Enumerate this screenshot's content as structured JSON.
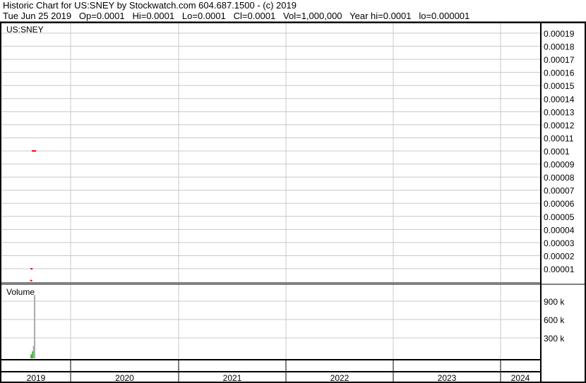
{
  "header": {
    "title": "Historic Chart for US:SNEY by Stockwatch.com 604.687.1500 - (c) 2019",
    "quote": "Tue Jun 25 2019   Op=0.0001   Hi=0.0001   Lo=0.0001   Cl=0.0001   Vol=1,000,000   Year hi=0.0001   lo=0.000001"
  },
  "chart_data": [
    {
      "type": "scatter",
      "title": "US:SNEY",
      "y_ticks": [
        "0.00019",
        "0.00018",
        "0.00017",
        "0.00016",
        "0.00015",
        "0.00014",
        "0.00013",
        "0.00012",
        "0.00011",
        "0.0001",
        "0.00009",
        "0.00008",
        "0.00007",
        "0.00006",
        "0.00005",
        "0.00004",
        "0.00003",
        "0.00002",
        "0.00001"
      ],
      "ylim": [
        0,
        0.0002
      ],
      "x_ticks": [
        "2019",
        "2020",
        "2021",
        "2022",
        "2023",
        "2024"
      ],
      "grid": true,
      "points": [
        {
          "x": "2019-06-05",
          "y": 1e-06
        },
        {
          "x": "2019-06-07",
          "y": 1e-05
        },
        {
          "x": "2019-06-14",
          "y": 0.0001
        },
        {
          "x": "2019-06-20",
          "y": 0.0001
        },
        {
          "x": "2019-06-25",
          "y": 0.0001
        }
      ],
      "color": "#ff0000"
    },
    {
      "type": "bar",
      "title": "Volume",
      "y_ticks": [
        "900 k",
        "600 k",
        "300 k"
      ],
      "ylim": [
        0,
        1100000
      ],
      "bars": [
        {
          "x": "2019-06-07",
          "value": 30000,
          "color": "#33bb33"
        },
        {
          "x": "2019-06-14",
          "value": 80000,
          "color": "#33bb33"
        },
        {
          "x": "2019-06-20",
          "value": 170000,
          "color": "#aaaaaa"
        },
        {
          "x": "2019-06-25",
          "value": 1000000,
          "color": "#aaaaaa"
        }
      ]
    }
  ]
}
